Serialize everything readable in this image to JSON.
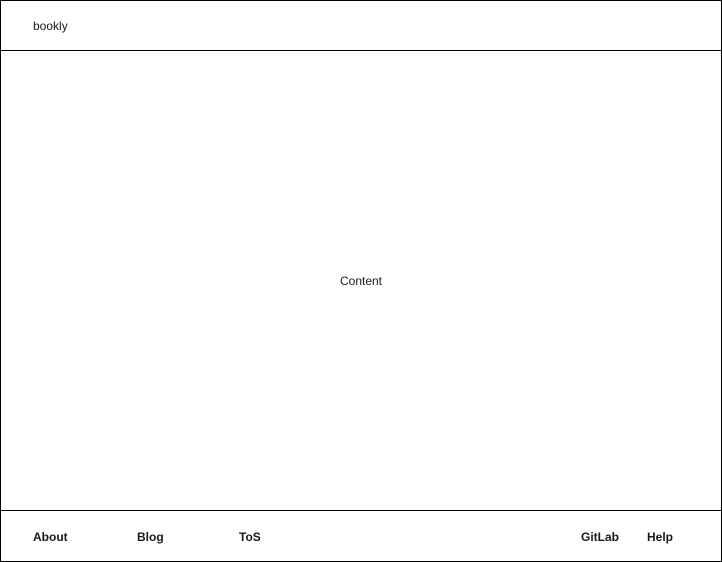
{
  "header": {
    "brand": "bookly"
  },
  "main": {
    "placeholder": "Content"
  },
  "footer": {
    "links": {
      "about": "About",
      "blog": "Blog",
      "tos": "ToS",
      "gitlab": "GitLab",
      "help": "Help"
    }
  }
}
